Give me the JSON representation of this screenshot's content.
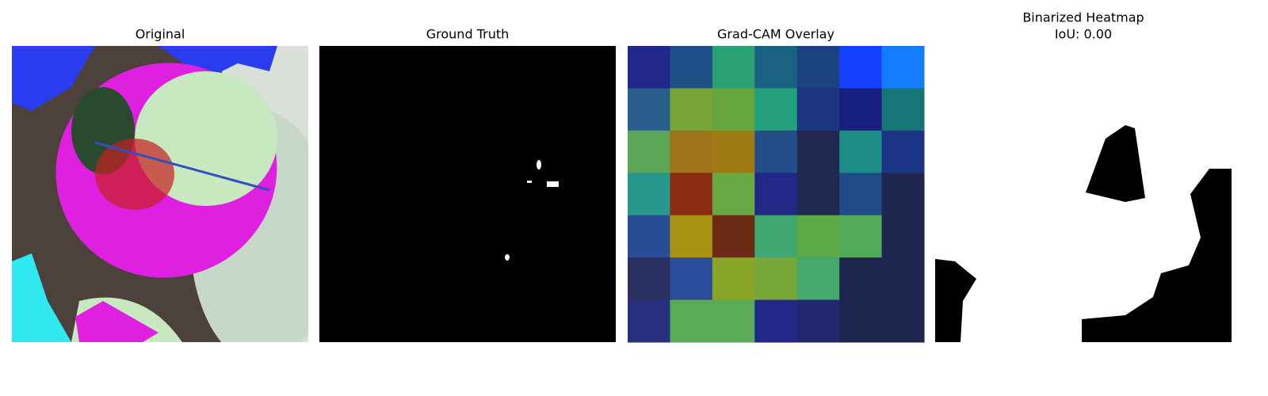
{
  "panels": [
    {
      "title": "Original"
    },
    {
      "title": "Ground Truth"
    },
    {
      "title": "Grad-CAM Overlay",
      "cells": [
        [
          "#22288a",
          "#1f4f86",
          "#2aa073",
          "#1b6282",
          "#1a4280",
          "#1440ff",
          "#147dff"
        ],
        [
          "#2a5e8a",
          "#78a436",
          "#66a43e",
          "#24a07a",
          "#1b3580",
          "#18207f",
          "#177478"
        ],
        [
          "#5aa657",
          "#a0721a",
          "#a07a14",
          "#224e8a",
          "#202850",
          "#1c8c86",
          "#1b3484"
        ],
        [
          "#27998a",
          "#8c2a14",
          "#68a844",
          "#222888",
          "#202850",
          "#1f4a86",
          "#1e2650"
        ],
        [
          "#2a4c96",
          "#a89214",
          "#6a2a14",
          "#40a86e",
          "#5aaa48",
          "#52aa58",
          "#1e2650"
        ],
        [
          "#2a3060",
          "#2b4c98",
          "#8aa626",
          "#78a83a",
          "#46a86a",
          "#1e2650",
          "#1e2650"
        ],
        [
          "#2a3080",
          "#5aaa58",
          "#5aaa58",
          "#222888",
          "#222870",
          "#1e2650",
          "#1e2650"
        ]
      ]
    },
    {
      "title": "Binarized Heatmap",
      "subtitle": "IoU: 0.00"
    }
  ]
}
